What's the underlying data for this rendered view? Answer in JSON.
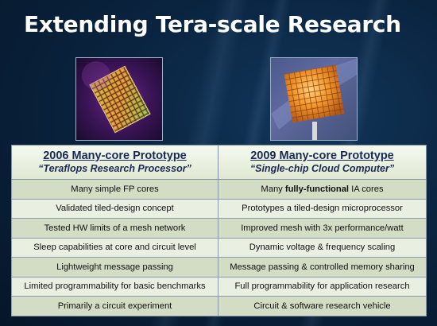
{
  "title": "Extending Tera-scale Research",
  "columns": [
    {
      "heading": "2006 Many-core Prototype",
      "subheading": "“Teraflops Research Processor”"
    },
    {
      "heading": "2009 Many-core Prototype",
      "subheading": "“Single-chip Cloud Computer”"
    }
  ],
  "rows": [
    {
      "left": "Many simple FP cores",
      "right_pre": "Many ",
      "right_bold": "fully-functional",
      "right_post": " IA cores"
    },
    {
      "left": "Validated tiled-design concept",
      "right": "Prototypes a tiled-design microprocessor"
    },
    {
      "left": "Tested HW limits of a mesh network",
      "right": "Improved mesh with 3x performance/watt"
    },
    {
      "left": "Sleep capabilities at core and circuit level",
      "right": "Dynamic voltage & frequency scaling"
    },
    {
      "left": "Lightweight message passing",
      "right": "Message passing & controlled memory sharing"
    },
    {
      "left": "Limited programmability for basic benchmarks",
      "right": "Full programmability for application research"
    },
    {
      "left": "Primarily a circuit experiment",
      "right": "Circuit & software research vehicle"
    }
  ]
}
